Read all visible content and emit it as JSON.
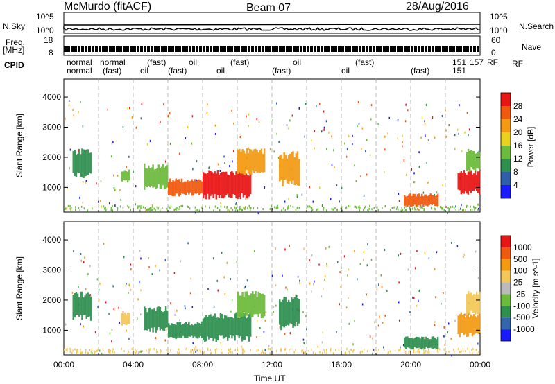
{
  "header": {
    "station": "McMurdo (fitACF)",
    "beam": "Beam 07",
    "date": "28/Aug/2016"
  },
  "top_panels": {
    "nsky_label": "N.Sky",
    "nsky_ticks": [
      "10^5",
      "10^0"
    ],
    "nsearch_label": "N.Search",
    "nsearch_ticks": [
      "10^5",
      "10^0"
    ],
    "freq_label_1": "Freq.",
    "freq_label_2": "[MHz]",
    "freq_ticks": [
      "18",
      "8"
    ],
    "nave_label": "Nave",
    "nave_ticks": [
      "60",
      "0"
    ],
    "cpid_label": "CPID",
    "rf_label": "RF",
    "cpid_row1": [
      "normal",
      "normal",
      "(fast)",
      "oil",
      "(fast)",
      "oil",
      "(fast)",
      "151",
      "157",
      "RF"
    ],
    "cpid_row2": [
      "normal",
      "(fast)",
      "oil",
      "(fast)",
      "oil",
      "(fast)",
      "oil",
      "(fast)",
      "151"
    ]
  },
  "chart_data": [
    {
      "type": "heatmap",
      "name": "power",
      "ylabel": "Slant Range [km]",
      "xlabel": "",
      "ylim": [
        180,
        4600
      ],
      "yticks": [
        1000,
        2000,
        3000,
        4000
      ],
      "colorbar": {
        "label": "Power [dB]",
        "ticks": [
          "4",
          "8",
          "12",
          "16",
          "20",
          "24",
          "28"
        ],
        "colors": [
          "#1a1aff",
          "#2f5fa8",
          "#2f8f4f",
          "#6dbb3c",
          "#e8d21f",
          "#f39a12",
          "#f05a0f",
          "#e81515"
        ]
      },
      "regions": [
        {
          "t0": 0.5,
          "t1": 1.6,
          "r0": 1300,
          "r1": 2300,
          "color": "#2f8f4f"
        },
        {
          "t0": 3.3,
          "t1": 3.8,
          "r0": 1150,
          "r1": 1600,
          "color": "#6dbb3c"
        },
        {
          "t0": 4.6,
          "t1": 6.0,
          "r0": 900,
          "r1": 1800,
          "color": "#6dbb3c"
        },
        {
          "t0": 6.0,
          "t1": 8.0,
          "r0": 700,
          "r1": 1300,
          "color": "#f05a0f"
        },
        {
          "t0": 8.0,
          "t1": 10.8,
          "r0": 600,
          "r1": 1600,
          "color": "#e81515"
        },
        {
          "t0": 10.0,
          "t1": 11.6,
          "r0": 1400,
          "r1": 2300,
          "color": "#f39a12"
        },
        {
          "t0": 12.4,
          "t1": 13.6,
          "r0": 1000,
          "r1": 2200,
          "color": "#f39a12"
        },
        {
          "t0": 19.6,
          "t1": 21.6,
          "r0": 350,
          "r1": 800,
          "color": "#f05a0f"
        },
        {
          "t0": 22.7,
          "t1": 24.0,
          "r0": 750,
          "r1": 1600,
          "color": "#e81515"
        },
        {
          "t0": 23.2,
          "t1": 24.0,
          "r0": 1500,
          "r1": 2300,
          "color": "#6dbb3c"
        }
      ]
    },
    {
      "type": "heatmap",
      "name": "velocity",
      "ylabel": "Slant Range [km]",
      "xlabel": "Time UT",
      "ylim": [
        180,
        4600
      ],
      "yticks": [
        1000,
        2000,
        3000,
        4000
      ],
      "xticks": [
        "00:00",
        "04:00",
        "08:00",
        "12:00",
        "16:00",
        "20:00",
        "00:00"
      ],
      "colorbar": {
        "label": "Velocity [m s^-1]",
        "ticks": [
          "1000",
          "500",
          "100",
          "25",
          "-25",
          "-100",
          "-500",
          "-1000"
        ],
        "colors": [
          "#1a1aff",
          "#3366aa",
          "#2f8f4f",
          "#6dbb3c",
          "#bbbbbb",
          "#f3c85a",
          "#f39a12",
          "#f05a0f",
          "#e81515"
        ]
      },
      "regions": [
        {
          "t0": 0.5,
          "t1": 1.6,
          "r0": 1300,
          "r1": 2300,
          "color": "#2f8f4f"
        },
        {
          "t0": 3.3,
          "t1": 3.8,
          "r0": 1150,
          "r1": 1600,
          "color": "#f3c85a"
        },
        {
          "t0": 4.6,
          "t1": 6.0,
          "r0": 900,
          "r1": 1800,
          "color": "#2f8f4f"
        },
        {
          "t0": 6.0,
          "t1": 8.0,
          "r0": 700,
          "r1": 1300,
          "color": "#2f8f4f"
        },
        {
          "t0": 8.0,
          "t1": 10.8,
          "r0": 600,
          "r1": 1600,
          "color": "#2f8f4f"
        },
        {
          "t0": 10.0,
          "t1": 11.6,
          "r0": 1400,
          "r1": 2300,
          "color": "#6dbb3c"
        },
        {
          "t0": 12.4,
          "t1": 13.6,
          "r0": 1000,
          "r1": 2200,
          "color": "#2f8f4f"
        },
        {
          "t0": 19.6,
          "t1": 21.6,
          "r0": 350,
          "r1": 800,
          "color": "#2f8f4f"
        },
        {
          "t0": 22.7,
          "t1": 24.0,
          "r0": 750,
          "r1": 1600,
          "color": "#f39a12"
        },
        {
          "t0": 23.2,
          "t1": 24.0,
          "r0": 1500,
          "r1": 2300,
          "color": "#f3c85a"
        }
      ]
    }
  ]
}
